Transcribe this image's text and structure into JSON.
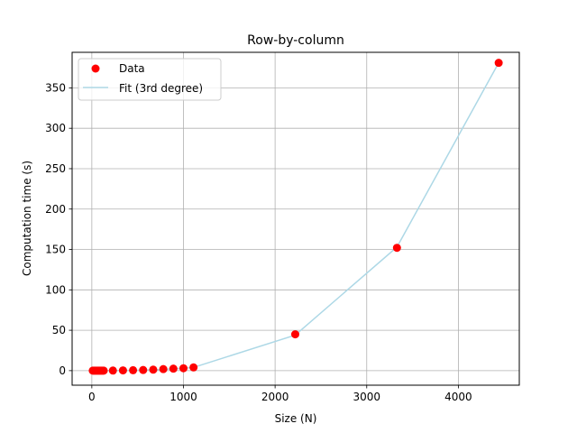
{
  "chart_data": {
    "type": "scatter",
    "title": "Row-by-column",
    "xlabel": "Size (N)",
    "ylabel": "Computation time (s)",
    "xlim": [
      -215,
      4665
    ],
    "ylim": [
      -18,
      394
    ],
    "xticks": [
      0,
      1000,
      2000,
      3000,
      4000
    ],
    "yticks": [
      0,
      50,
      100,
      150,
      200,
      250,
      300,
      350
    ],
    "grid": true,
    "legend_position": "top-left",
    "series": [
      {
        "name": "Data",
        "kind": "scatter",
        "color": "#ff0000",
        "x": [
          10,
          20,
          30,
          40,
          50,
          60,
          70,
          80,
          90,
          100,
          110,
          120,
          130,
          230,
          340,
          450,
          560,
          670,
          780,
          890,
          1000,
          1110,
          2220,
          3330,
          4440
        ],
        "y": [
          0,
          0,
          0,
          0,
          0,
          0,
          0,
          0,
          0,
          0,
          0,
          0,
          0,
          0.1,
          0.3,
          0.5,
          0.8,
          1.2,
          1.9,
          2.5,
          3.0,
          4.0,
          45,
          152,
          381
        ]
      },
      {
        "name": "Fit (3rd degree)",
        "kind": "line",
        "color": "#add8e6",
        "x": [
          10,
          130,
          230,
          340,
          450,
          560,
          670,
          780,
          890,
          1000,
          1110,
          2220,
          3330,
          4440
        ],
        "y": [
          0,
          0,
          0.1,
          0.2,
          0.4,
          0.7,
          1.1,
          1.6,
          2.2,
          3.0,
          4.0,
          44,
          153,
          381
        ]
      }
    ]
  }
}
